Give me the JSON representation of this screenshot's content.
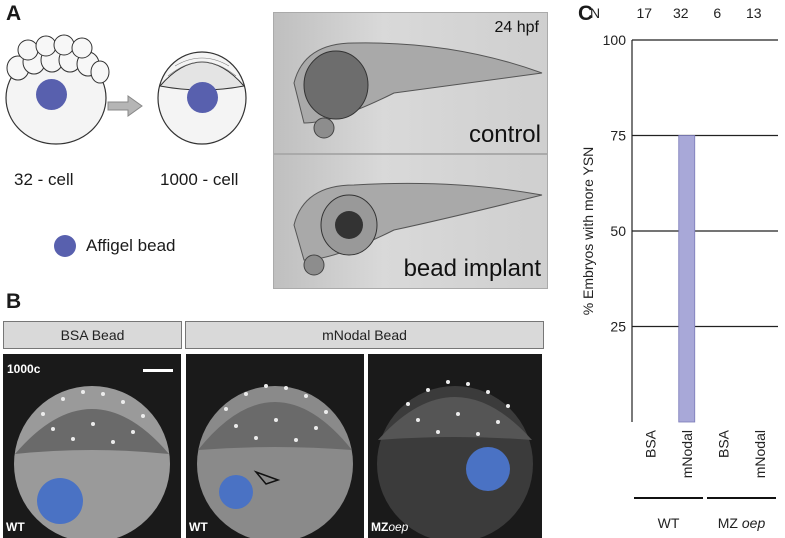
{
  "panels": {
    "a": "A",
    "b": "B",
    "c": "C"
  },
  "panel_a": {
    "stage_left": "32 - cell",
    "stage_right": "1000 - cell",
    "legend": "Affigel bead",
    "timepoint": "24 hpf",
    "photo_top_label": "control",
    "photo_bottom_label": "bead implant"
  },
  "panel_b": {
    "header_left": "BSA Bead",
    "header_right": "mNodal Bead",
    "stage": "1000c",
    "img1_label": "WT",
    "img2_label": "WT",
    "img3_label_prefix": "MZ",
    "img3_label_italic": "oep"
  },
  "colors": {
    "bead": "#4a72c4",
    "sketch_bead": "#5860ae",
    "bar": "#a8a8d8"
  },
  "chart_data": {
    "type": "bar",
    "ylabel": "% Embryos with more YSN",
    "ylim": [
      0,
      100
    ],
    "yticks": [
      25,
      50,
      75,
      100
    ],
    "categories": [
      "BSA",
      "mNodal",
      "BSA",
      "mNodal"
    ],
    "values": [
      0,
      75,
      0,
      0
    ],
    "n_header": "N",
    "n_values": [
      "17",
      "32",
      "6",
      "13"
    ],
    "groups": [
      {
        "name": "WT",
        "italic": ""
      },
      {
        "name": "MZ",
        "italic": "oep"
      }
    ],
    "grid": true
  }
}
